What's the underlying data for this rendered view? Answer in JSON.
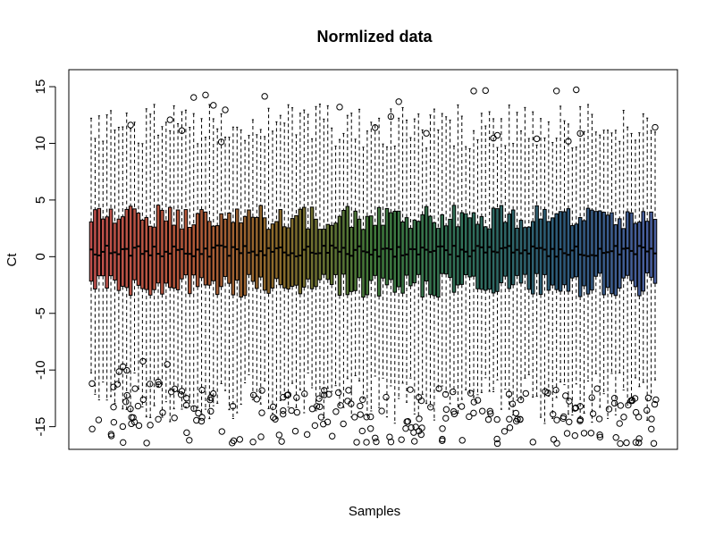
{
  "chart_data": {
    "type": "boxplot",
    "title": "Normlized data",
    "xlabel": "Samples",
    "ylabel": "Ct",
    "ylim": [
      -17,
      16.5
    ],
    "yticks": [
      -15,
      -10,
      -5,
      0,
      5,
      10,
      15
    ],
    "y_tick_labels": [
      "-15",
      "-10",
      "-5",
      "0",
      "5",
      "10",
      "15"
    ],
    "x_tick_labels": [],
    "n_samples": 144,
    "typical_box": {
      "whisker_low": -12.5,
      "q1": -2.5,
      "median": 0.5,
      "q3": 3.5,
      "whisker_high": 11.5
    },
    "outliers_range": {
      "low": [
        -16.5,
        -9
      ],
      "high": [
        10,
        15
      ]
    },
    "grid": false,
    "legend": "none",
    "colors": {
      "box_gradient": [
        "#c0504d",
        "#b5573a",
        "#8a6a2a",
        "#3f7a3a",
        "#2f6f5a",
        "#2d5a7a",
        "#4a5fa0"
      ],
      "box_edge": "#000000",
      "whisker": "#000000",
      "outlier": "#000000"
    }
  }
}
